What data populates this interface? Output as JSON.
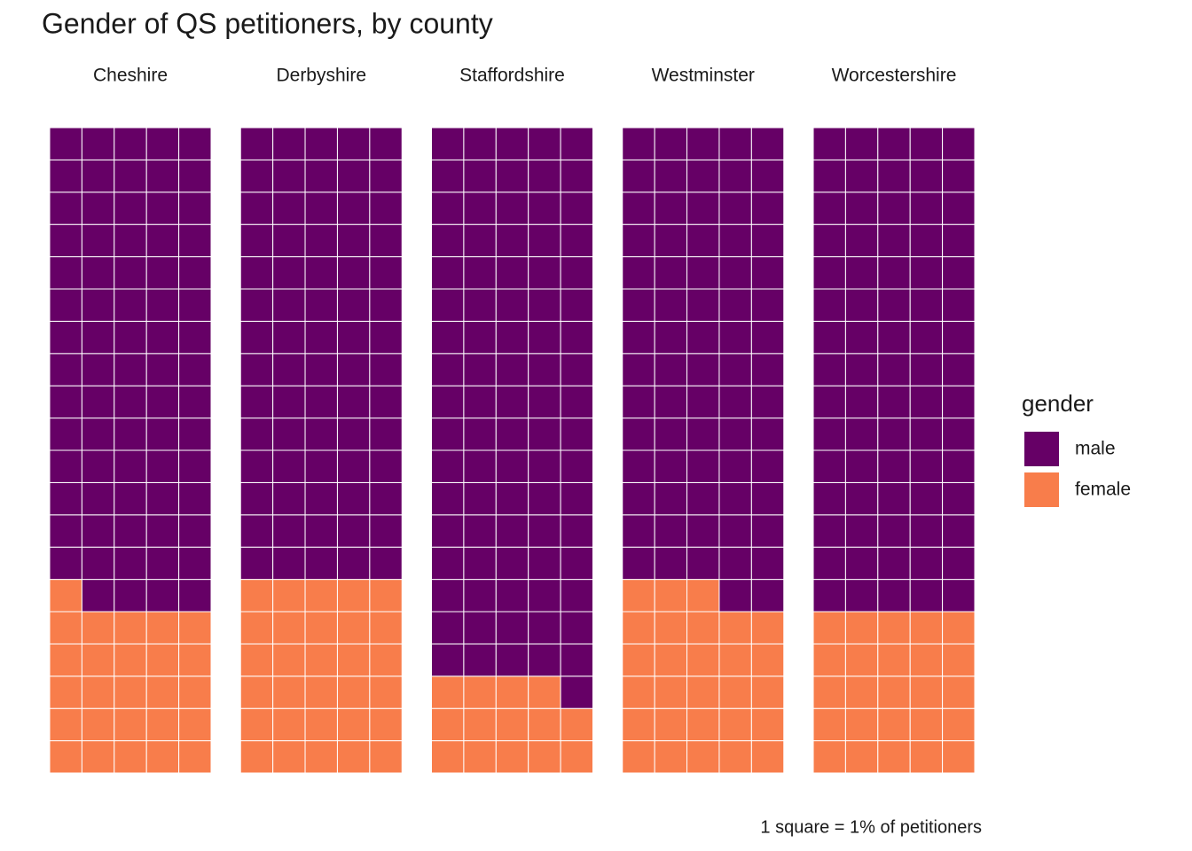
{
  "chart_data": {
    "type": "waffle",
    "title": "Gender of QS petitioners, by county",
    "categories": [
      "Cheshire",
      "Derbyshire",
      "Staffordshire",
      "Westminster",
      "Worcestershire"
    ],
    "series": [
      {
        "name": "male",
        "color": "#660066",
        "values": [
          74,
          70,
          86,
          72,
          75
        ]
      },
      {
        "name": "female",
        "color": "#f87d4b",
        "values": [
          26,
          30,
          14,
          28,
          25
        ]
      }
    ],
    "legend_title": "gender",
    "caption": "1 square = 1% of petitioners"
  }
}
